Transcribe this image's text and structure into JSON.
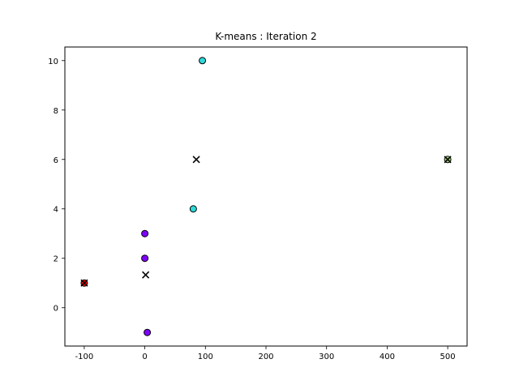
{
  "chart_data": {
    "type": "scatter",
    "title": "K-means : Iteration 2",
    "xlabel": "",
    "ylabel": "",
    "xlim": [
      -132,
      532
    ],
    "ylim": [
      -1.55,
      10.55
    ],
    "xticks": [
      -100,
      0,
      100,
      200,
      300,
      400,
      500
    ],
    "yticks": [
      0,
      2,
      4,
      6,
      8,
      10
    ],
    "grid": false,
    "points": [
      {
        "x": 95,
        "y": 10,
        "color": "#2ed8d8"
      },
      {
        "x": 80,
        "y": 4,
        "color": "#2ed8d8"
      },
      {
        "x": 0,
        "y": 3,
        "color": "#8000ff"
      },
      {
        "x": 0,
        "y": 2,
        "color": "#8000ff"
      },
      {
        "x": 4,
        "y": -1,
        "color": "#8000ff"
      },
      {
        "x": -100,
        "y": 1,
        "color": "#ff0000"
      },
      {
        "x": 500,
        "y": 6,
        "color": "#a8e070"
      }
    ],
    "centroids": [
      {
        "x": 85,
        "y": 6
      },
      {
        "x": 1.33,
        "y": 1.33
      },
      {
        "x": -100,
        "y": 1
      },
      {
        "x": 500,
        "y": 6
      }
    ],
    "centroid_marker": "x",
    "centroid_color": "#000000",
    "point_edge_color": "#000000"
  }
}
